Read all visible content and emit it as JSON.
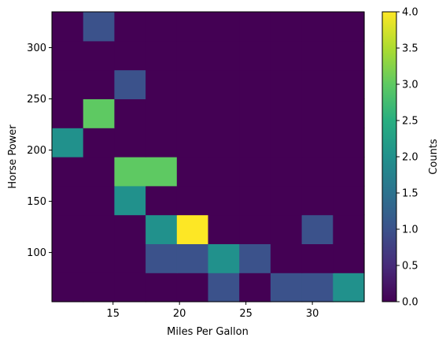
{
  "chart_data": {
    "type": "heatmap",
    "xlabel": "Miles Per Gallon",
    "ylabel": "Horse Power",
    "colorbar_label": "Counts",
    "xlim": [
      10.4,
      33.9
    ],
    "ylim": [
      52,
      335
    ],
    "x_ticks": [
      15,
      20,
      25,
      30
    ],
    "y_ticks": [
      100,
      150,
      200,
      250,
      300
    ],
    "colorbar_ticks": [
      0.0,
      0.5,
      1.0,
      1.5,
      2.0,
      2.5,
      3.0,
      3.5,
      4.0
    ],
    "colorbar_range": [
      0,
      4
    ],
    "colormap": "viridis",
    "x_bin_edges": [
      10.4,
      12.75,
      15.1,
      17.45,
      19.8,
      22.15,
      24.5,
      26.85,
      29.2,
      31.55,
      33.9
    ],
    "y_bin_edges": [
      52,
      80.3,
      108.6,
      136.9,
      165.2,
      193.5,
      221.8,
      250.1,
      278.4,
      306.7,
      335
    ],
    "counts": [
      [
        0,
        0,
        0,
        0,
        0,
        1,
        0,
        1,
        1,
        2
      ],
      [
        0,
        0,
        0,
        1,
        1,
        2,
        1,
        0,
        0,
        0
      ],
      [
        0,
        0,
        0,
        2,
        4,
        0,
        0,
        0,
        1,
        0
      ],
      [
        0,
        0,
        2,
        0,
        0,
        0,
        0,
        0,
        0,
        0
      ],
      [
        0,
        0,
        3,
        3,
        0,
        0,
        0,
        0,
        0,
        0
      ],
      [
        2,
        0,
        0,
        0,
        0,
        0,
        0,
        0,
        0,
        0
      ],
      [
        0,
        3,
        0,
        0,
        0,
        0,
        0,
        0,
        0,
        0
      ],
      [
        0,
        0,
        1,
        0,
        0,
        0,
        0,
        0,
        0,
        0
      ],
      [
        0,
        0,
        0,
        0,
        0,
        0,
        0,
        0,
        0,
        0
      ],
      [
        0,
        1,
        0,
        0,
        0,
        0,
        0,
        0,
        0,
        0
      ]
    ]
  }
}
